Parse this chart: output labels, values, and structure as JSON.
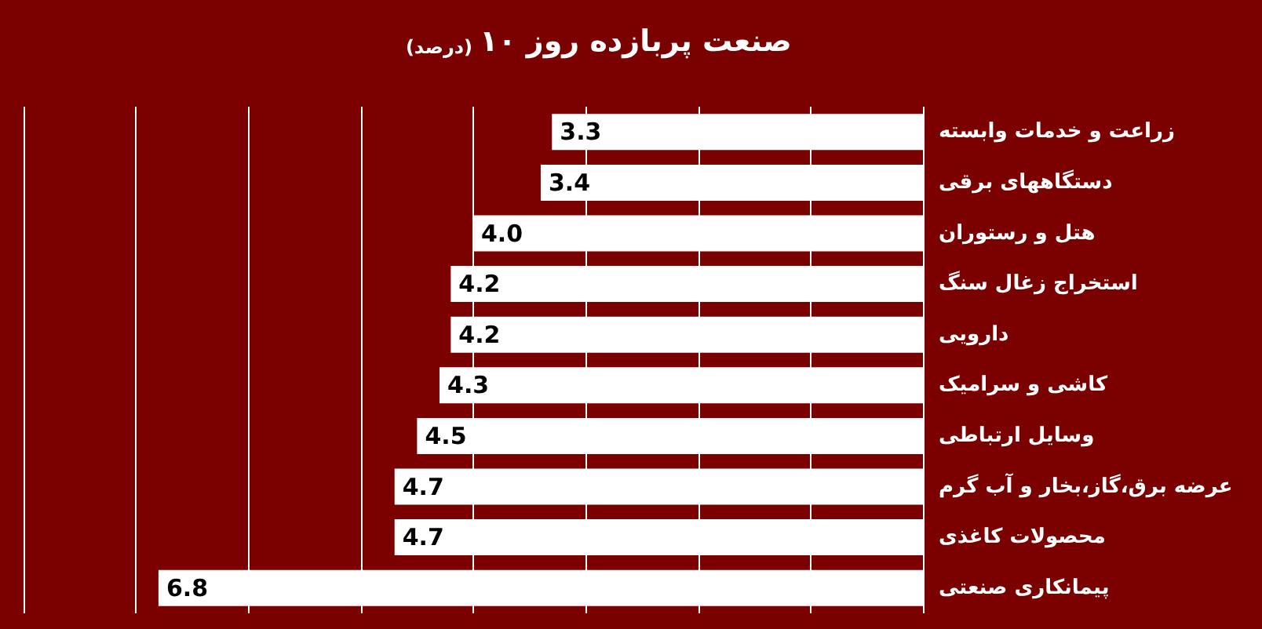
{
  "chart_data": {
    "type": "bar",
    "orientation": "horizontal",
    "title": "۱۰ صنعت پربازده روز",
    "subtitle": "(درصد)",
    "categories": [
      "زراعت و خدمات وابسته",
      "دستگاههای برقی",
      "هتل و رستوران",
      "استخراج زغال سنگ",
      "دارویی",
      "کاشی و سرامیک",
      "وسایل ارتباطی",
      "عرضه برق،گاز،بخار و آب گرم",
      "محصولات کاغذی",
      "پیمانکاری صنعتی"
    ],
    "values": [
      3.3,
      3.4,
      4.0,
      4.2,
      4.2,
      4.3,
      4.5,
      4.7,
      4.7,
      6.8
    ],
    "value_labels": [
      "3.3",
      "3.4",
      "4.0",
      "4.2",
      "4.2",
      "4.3",
      "4.5",
      "4.7",
      "4.7",
      "6.8"
    ],
    "color": "#ffffff",
    "xlim": [
      8,
      0
    ],
    "xticks": [
      {
        "value": 0,
        "label": null
      },
      {
        "value": 1,
        "label": null
      },
      {
        "value": 2,
        "label": null
      },
      {
        "value": 3,
        "label": null
      },
      {
        "value": 4,
        "label": null
      },
      {
        "value": 5,
        "label": null
      },
      {
        "value": 6,
        "label": null
      },
      {
        "value": 7,
        "label": null
      },
      {
        "value": 8,
        "label": null
      }
    ],
    "grid": "x",
    "tick_labels": "y"
  }
}
